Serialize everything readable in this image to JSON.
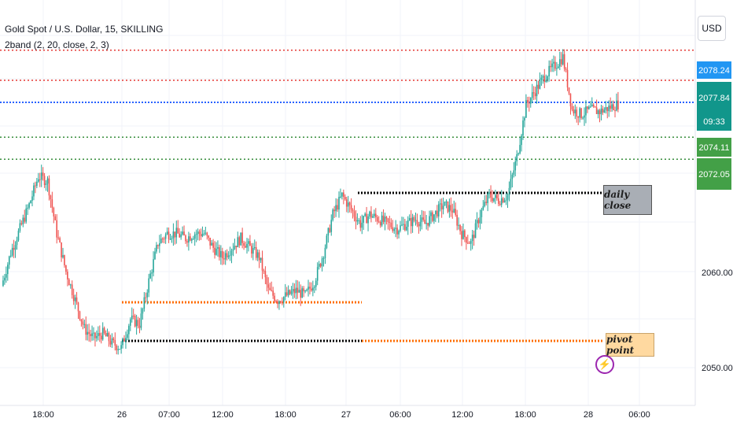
{
  "header": {
    "symbol_title": "Gold Spot / U.S. Dollar, 15, SKILLING",
    "indicator_label": "2band (2, 20, close, 2, 3)"
  },
  "price_scale": {
    "currency": "USD",
    "ticks": [
      "2060.00",
      "2050.00"
    ],
    "badges": {
      "last_price": "2078.24",
      "bid_price": "2077.84",
      "countdown": "09:33",
      "level_upper_green": "2074.11",
      "level_lower_green": "2072.05"
    }
  },
  "time_axis": {
    "labels": [
      "18:00",
      "26",
      "07:00",
      "12:00",
      "18:00",
      "27",
      "06:00",
      "12:00",
      "18:00",
      "28",
      "06:00"
    ]
  },
  "annotations": {
    "daily_close": "daily close",
    "pivot_point": "pivot point"
  },
  "colors": {
    "up": "#26a69a",
    "down": "#ef5350",
    "red_level": "#e53935",
    "blue_level": "#2962ff",
    "green_level": "#388e3c",
    "orange_level": "#ff6d00",
    "black_level": "#000000",
    "badge_blue": "#2196f3",
    "badge_teal": "#11968b",
    "badge_green": "#43a047"
  },
  "icons": [
    "lightning-bolt-icon"
  ],
  "chart_data": {
    "type": "candlestick",
    "y_unit": "USD",
    "levels": {
      "red_upper": 2082.0,
      "red_lower": 2080.0,
      "blue": 2077.6,
      "green_upper": 2074.11,
      "green_lower": 2072.05,
      "daily_close": 2068.0,
      "orange_upper": 2057.3,
      "pivot_black_orange": 2051.9
    },
    "close_path": [
      [
        0,
        2058.5
      ],
      [
        6,
        2062
      ],
      [
        12,
        2064.5
      ],
      [
        18,
        2067
      ],
      [
        24,
        2070
      ],
      [
        30,
        2069.5
      ],
      [
        36,
        2064
      ],
      [
        42,
        2060
      ],
      [
        48,
        2057
      ],
      [
        54,
        2054
      ],
      [
        60,
        2053
      ],
      [
        66,
        2053.5
      ],
      [
        72,
        2052.5
      ],
      [
        78,
        2052
      ],
      [
        84,
        2055
      ],
      [
        90,
        2054.5
      ],
      [
        96,
        2059
      ],
      [
        102,
        2063
      ],
      [
        108,
        2064
      ],
      [
        114,
        2064
      ],
      [
        120,
        2063.5
      ],
      [
        126,
        2064
      ],
      [
        132,
        2064
      ],
      [
        138,
        2062.5
      ],
      [
        144,
        2061.5
      ],
      [
        150,
        2062.5
      ],
      [
        156,
        2063.5
      ],
      [
        162,
        2062.5
      ],
      [
        168,
        2061.5
      ],
      [
        174,
        2058
      ],
      [
        180,
        2057
      ],
      [
        186,
        2057.5
      ],
      [
        192,
        2058
      ],
      [
        198,
        2057.5
      ],
      [
        204,
        2059
      ],
      [
        210,
        2062
      ],
      [
        216,
        2066
      ],
      [
        222,
        2068
      ],
      [
        228,
        2066.5
      ],
      [
        234,
        2065
      ],
      [
        240,
        2066
      ],
      [
        246,
        2065.5
      ],
      [
        252,
        2065
      ],
      [
        258,
        2064.5
      ],
      [
        264,
        2065
      ],
      [
        270,
        2065.5
      ],
      [
        276,
        2065
      ],
      [
        282,
        2066
      ],
      [
        288,
        2067
      ],
      [
        294,
        2066.5
      ],
      [
        300,
        2064
      ],
      [
        306,
        2063
      ],
      [
        312,
        2066
      ],
      [
        318,
        2068
      ],
      [
        324,
        2067.5
      ],
      [
        330,
        2068
      ],
      [
        336,
        2072
      ],
      [
        342,
        2077.5
      ],
      [
        348,
        2079
      ],
      [
        354,
        2080.5
      ],
      [
        360,
        2081.5
      ],
      [
        366,
        2082.5
      ],
      [
        372,
        2077
      ],
      [
        378,
        2076.5
      ],
      [
        384,
        2077
      ],
      [
        390,
        2076.8
      ],
      [
        396,
        2077.2
      ],
      [
        402,
        2077.6
      ]
    ]
  }
}
